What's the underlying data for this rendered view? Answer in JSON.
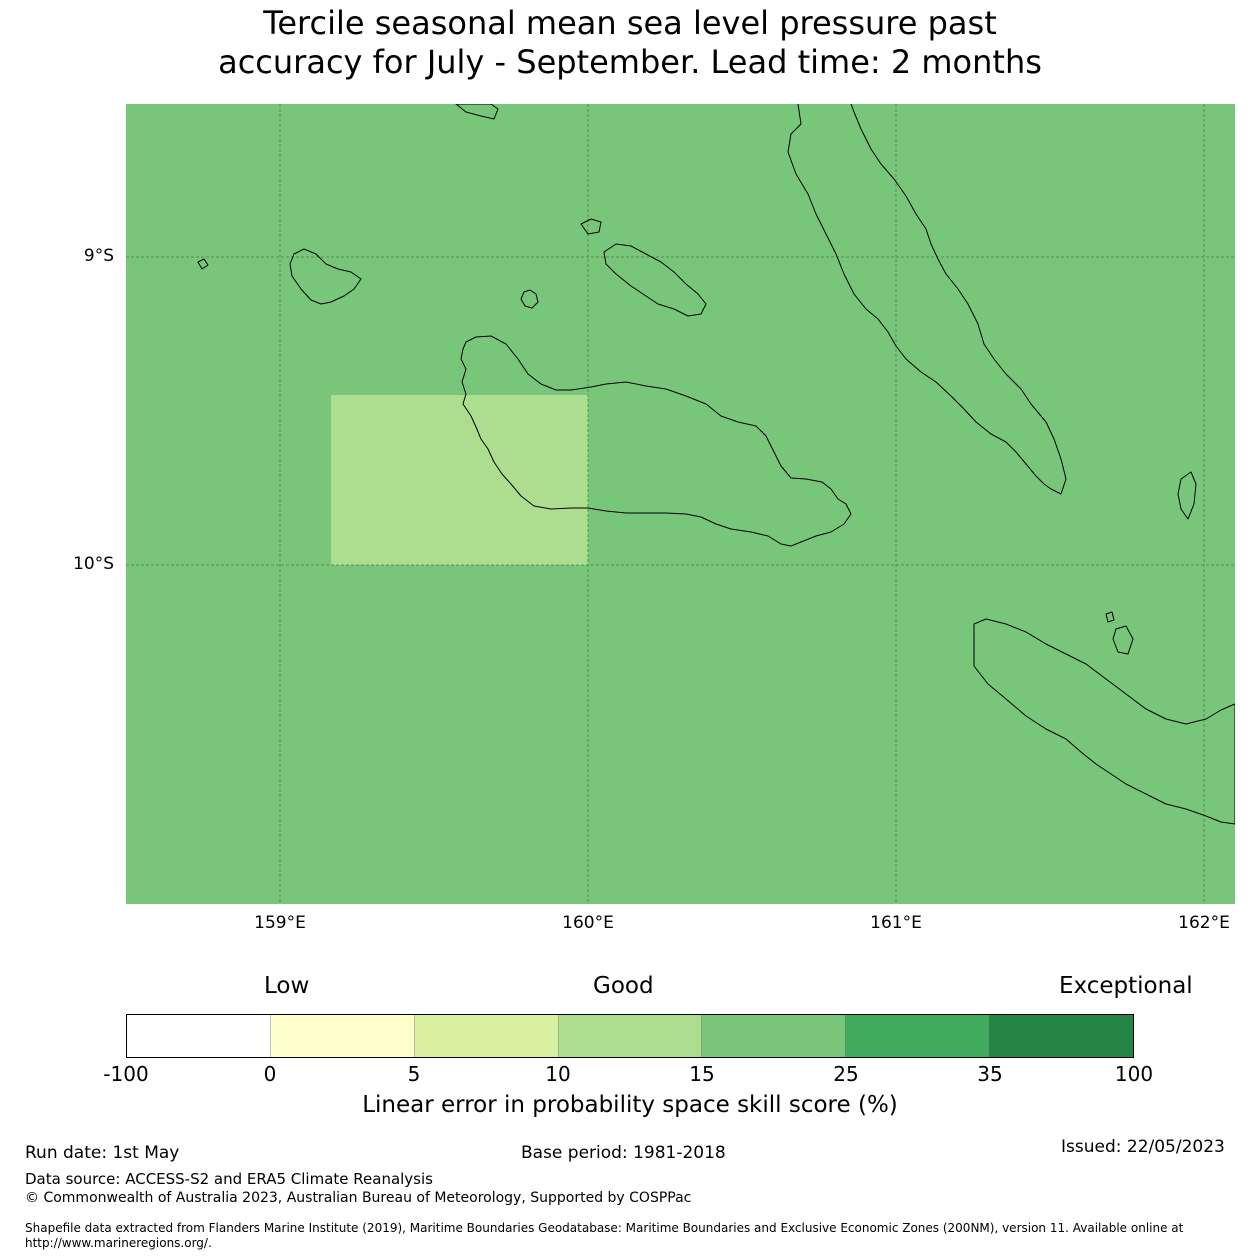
{
  "title": {
    "line1": "Tercile seasonal mean sea level pressure past",
    "line2": "accuracy for July - September. Lead time: 2 months"
  },
  "map": {
    "background_color": "#78c679",
    "highlight_color": "#addd8e",
    "lat_labels": [
      "9°S",
      "10°S"
    ],
    "lon_labels": [
      "159°E",
      "160°E",
      "161°E",
      "162°E"
    ]
  },
  "colorbar": {
    "words": {
      "low": "Low",
      "good": "Good",
      "exceptional": "Exceptional"
    },
    "colors": [
      "#ffffff",
      "#ffffcc",
      "#d9f0a3",
      "#addd8e",
      "#78c679",
      "#41ab5d",
      "#238443"
    ],
    "ticks": [
      "-100",
      "0",
      "5",
      "10",
      "15",
      "25",
      "35",
      "100"
    ],
    "label": "Linear error in probability space skill score (%)"
  },
  "footer": {
    "run_date": "Run date: 1st May",
    "base_period": "Base period: 1981-2018",
    "issued": "Issued: 22/05/2023",
    "data_source": "Data source: ACCESS-S2 and ERA5 Climate Reanalysis",
    "copyright": "© Commonwealth of Australia 2023, Australian Bureau of Meteorology, Supported by COSPPac",
    "shapefile_line1": "Shapefile data extracted from Flanders Marine Institute (2019), Maritime Boundaries Geodatabase: Maritime Boundaries and Exclusive Economic Zones (200NM), version 11. Available online at",
    "shapefile_line2": "http://www.marineregions.org/."
  }
}
